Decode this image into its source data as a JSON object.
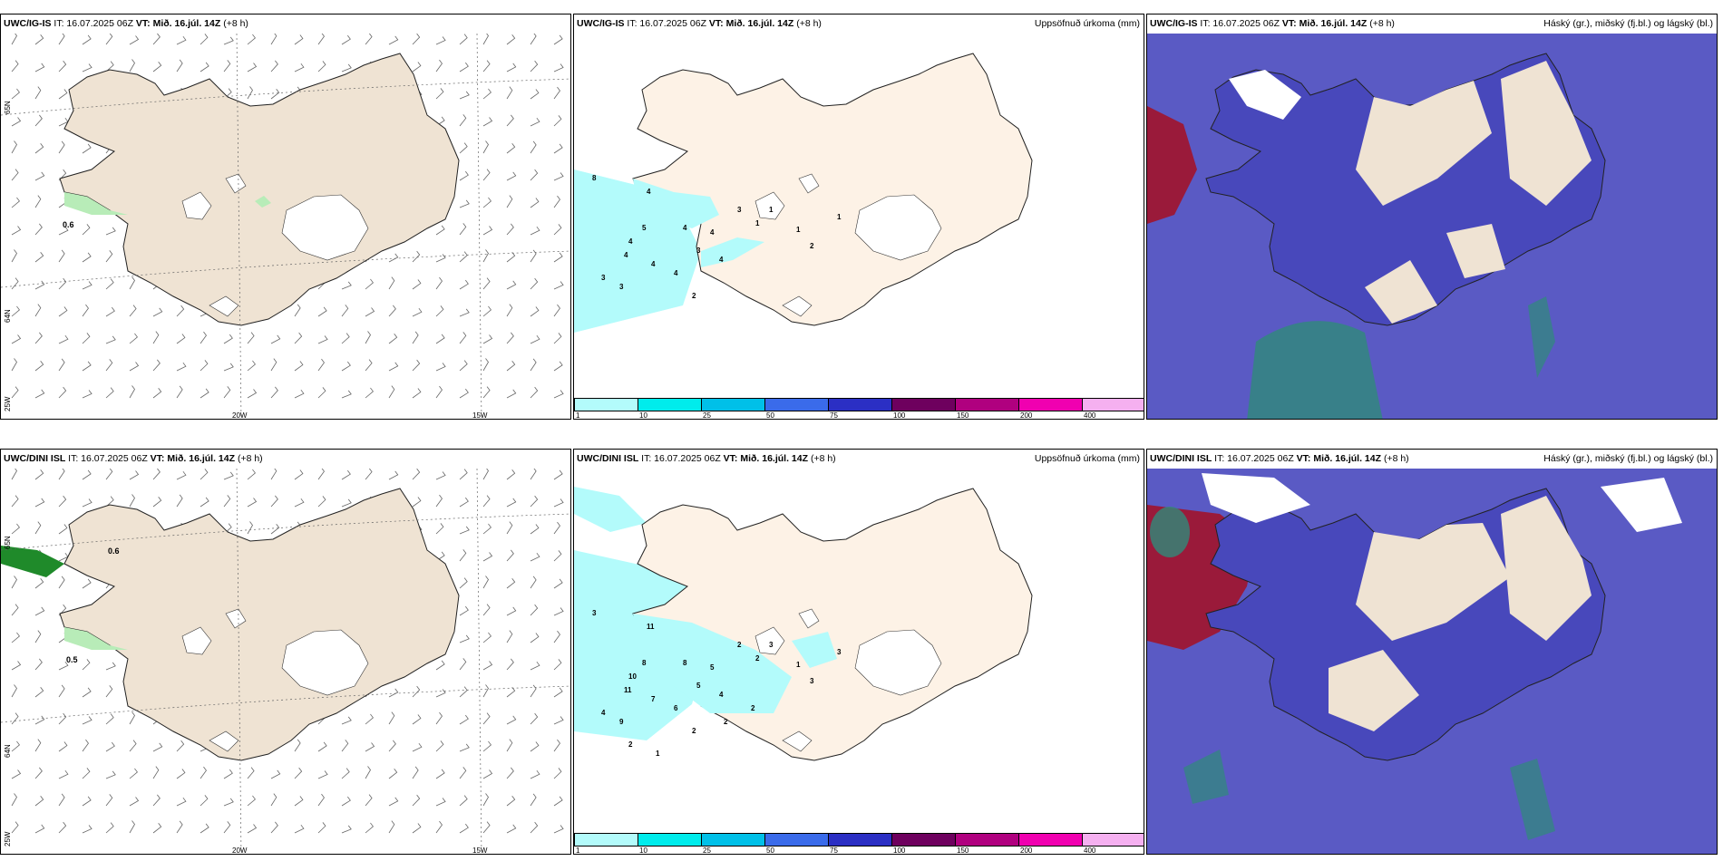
{
  "shared": {
    "it_label": "IT: 16.07.2025 06Z",
    "vt_label": "VT: Mið. 16.júl. 14Z",
    "lead": "(+8 h)",
    "precip_title": "Uppsöfnuð úrkoma (mm)",
    "cloud_title": "Háský (gr.), miðský (fj.bl.) og lágský (bl.)",
    "colorbar_ticks": [
      "1",
      "10",
      "25",
      "50",
      "75",
      "100",
      "150",
      "200",
      "400"
    ],
    "colorbar_colors": [
      "#b3fbfb",
      "#00ecec",
      "#00c0e8",
      "#3a6bea",
      "#2b2fc4",
      "#6e005e",
      "#b0007f",
      "#f000b0",
      "#f5b0f0"
    ],
    "lat_labels": [
      "65N",
      "64N"
    ],
    "lon_labels": [
      "25W",
      "20W",
      "15W"
    ]
  },
  "rows": [
    {
      "model": "UWC/IG-IS",
      "wind_label": "0.6",
      "precip_labels": [
        "8",
        "4",
        "5",
        "4",
        "4",
        "4",
        "4",
        "3",
        "3",
        "4",
        "3",
        "4",
        "4",
        "2",
        "3",
        "1",
        "1",
        "2",
        "1",
        "1"
      ]
    },
    {
      "model": "UWC/DINI ISL",
      "wind_labels": [
        "0.6",
        "0.5"
      ],
      "precip_labels": [
        "3",
        "11",
        "8",
        "10",
        "11",
        "7",
        "6",
        "4",
        "9",
        "8",
        "5",
        "5",
        "4",
        "2",
        "2",
        "2",
        "1",
        "3",
        "3",
        "3",
        "2",
        "1",
        "2",
        "2"
      ]
    }
  ],
  "colors": {
    "land": "#efe3d3",
    "land_light": "#fdf2e6",
    "precip_sea": "#b3fbfb",
    "cloud_low": "#5555c8",
    "cloud_high": "#9a1a3a",
    "cloud_mid": "#2f8a7a"
  }
}
